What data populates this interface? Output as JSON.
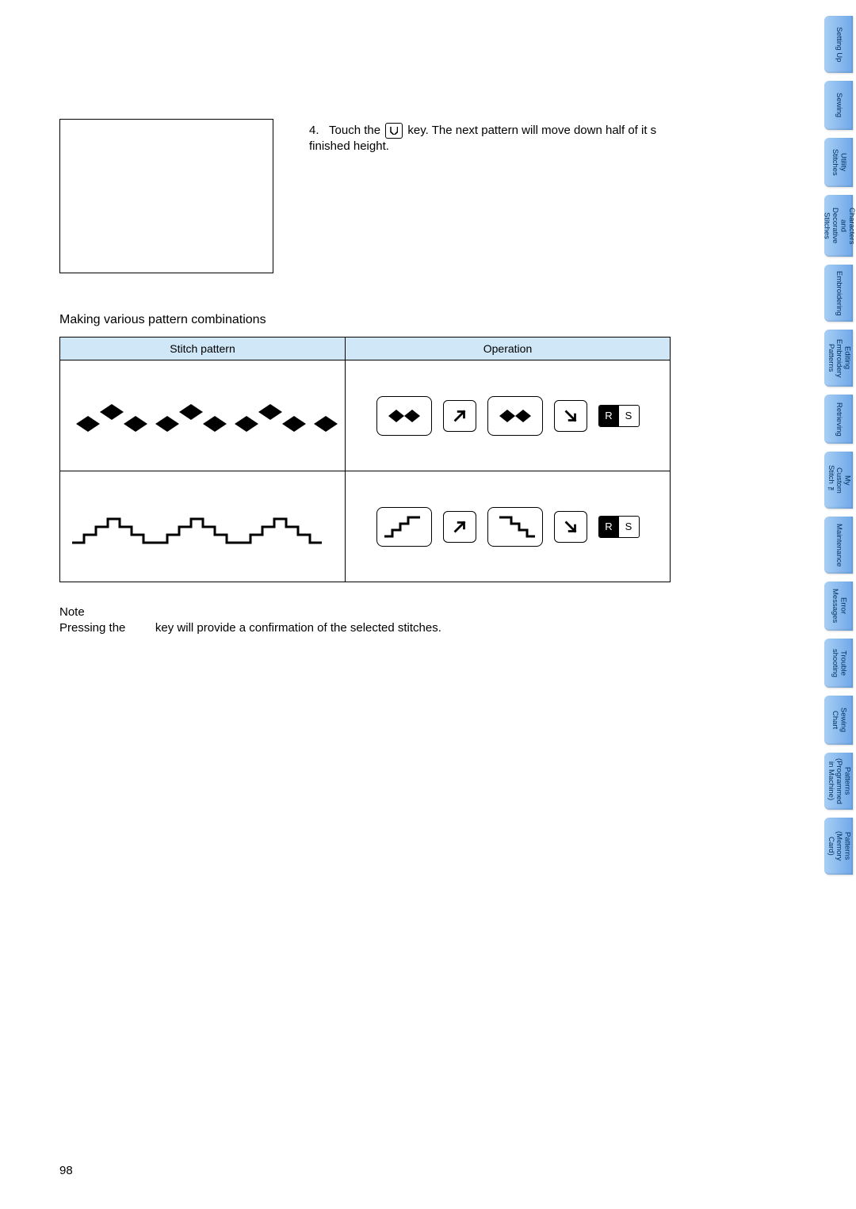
{
  "instruction": {
    "number": "4.",
    "text_before_key": "Touch the",
    "text_after_key": "key. The next pattern will move down half of it s finished height."
  },
  "subheading": "Making various pattern combinations",
  "table": {
    "headers": [
      "Stitch pattern",
      "Operation"
    ],
    "header_bg": "#cfe7f7",
    "rs_label_r": "R",
    "rs_label_s": "S"
  },
  "note": {
    "label": "Note",
    "before_key": "Pressing the",
    "after_key": "key will provide a confirmation of the selected stitches."
  },
  "page_number": "98",
  "tabs": [
    {
      "label": "Setting Up",
      "size": "med"
    },
    {
      "label": "Sewing",
      "size": "short"
    },
    {
      "label": "Utility\nStitches",
      "size": "short"
    },
    {
      "label": "Characters\nand\nDecorative\nStitches",
      "size": "long"
    },
    {
      "label": "Embroidering",
      "size": "med"
    },
    {
      "label": "Editing\nEmbroidery\nPatterns",
      "size": "med"
    },
    {
      "label": "Retrieving",
      "size": "short"
    },
    {
      "label": "My\nCustom\nStitch ™",
      "size": "med"
    },
    {
      "label": "Maintenance",
      "size": "med"
    },
    {
      "label": "Error\nMessages",
      "size": "short"
    },
    {
      "label": "Trouble\nshooting",
      "size": "short"
    },
    {
      "label": "Sewing\nChart",
      "size": "short"
    },
    {
      "label": "Patterns\n(Programmed\nin Machine)",
      "size": "med"
    },
    {
      "label": "Patterns\n(Memory\nCard)",
      "size": "med"
    }
  ],
  "colors": {
    "tab_gradient_light": "#a8cff5",
    "tab_gradient_dark": "#6fa8e8",
    "tab_text": "#003060",
    "background": "#ffffff"
  }
}
